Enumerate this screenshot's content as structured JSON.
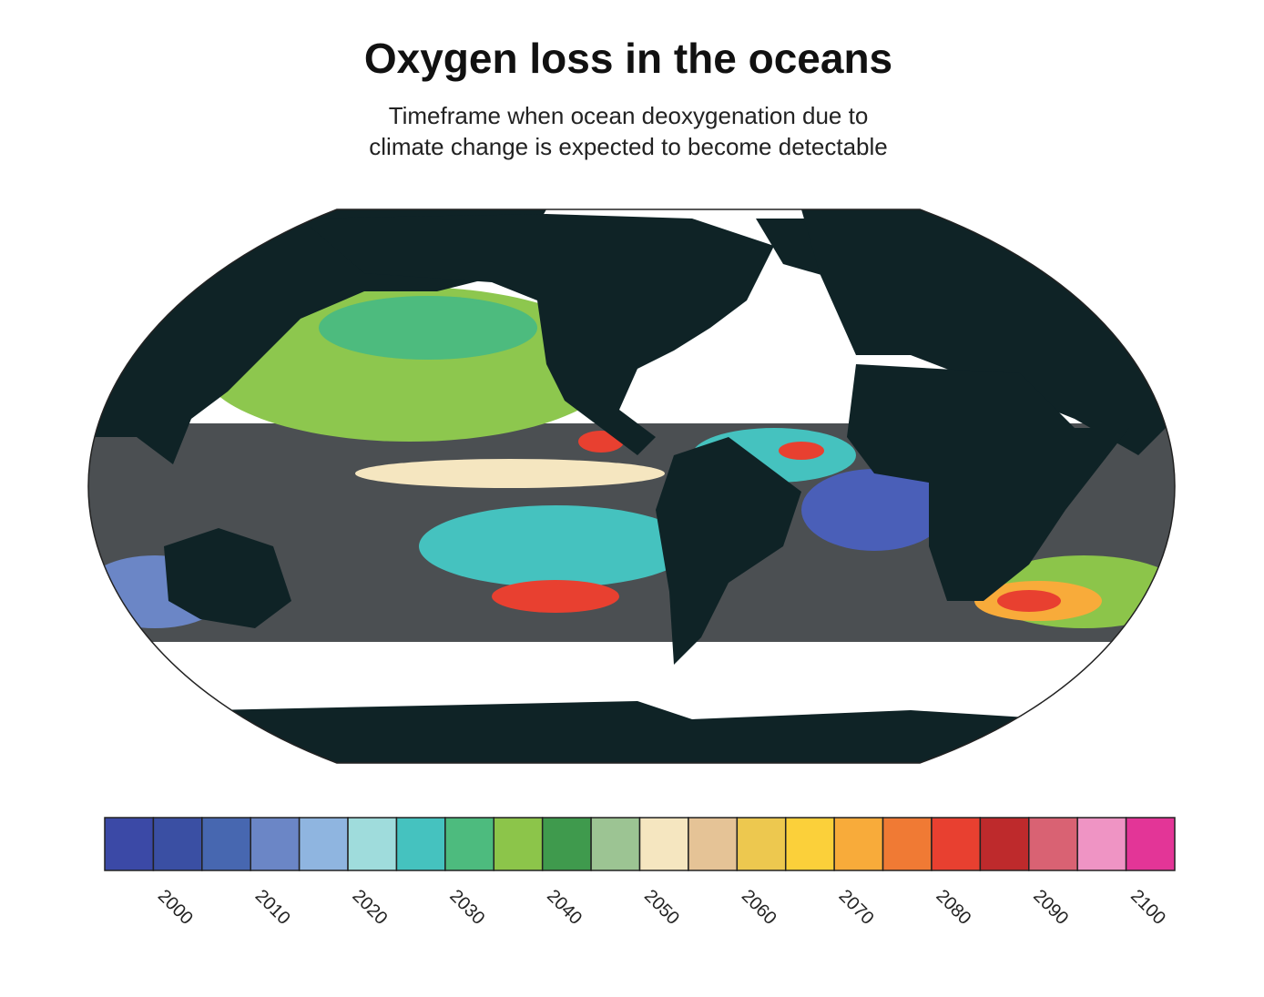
{
  "title": "Oxygen loss in the oceans",
  "subtitle": [
    "Timeframe when ocean deoxygenation due to",
    "climate change is expected to become detectable"
  ],
  "colorbar": {
    "lim": [
      1995,
      2105
    ],
    "ticks": [
      2000,
      2010,
      2020,
      2030,
      2040,
      2050,
      2060,
      2070,
      2080,
      2090,
      2100
    ],
    "colors": [
      "#3b49a6",
      "#3a4fa3",
      "#4767b0",
      "#6b86c6",
      "#8fb5e0",
      "#9fdcdc",
      "#45c2bf",
      "#4dbb7e",
      "#8cc54a",
      "#3f9a4d",
      "#9cc493",
      "#f5e6c0",
      "#e5c396",
      "#edc84f",
      "#fbd03a",
      "#f8ab3a",
      "#f07a34",
      "#e84030",
      "#be2a2c",
      "#d96273",
      "#ef94c4",
      "#e33597"
    ]
  }
}
